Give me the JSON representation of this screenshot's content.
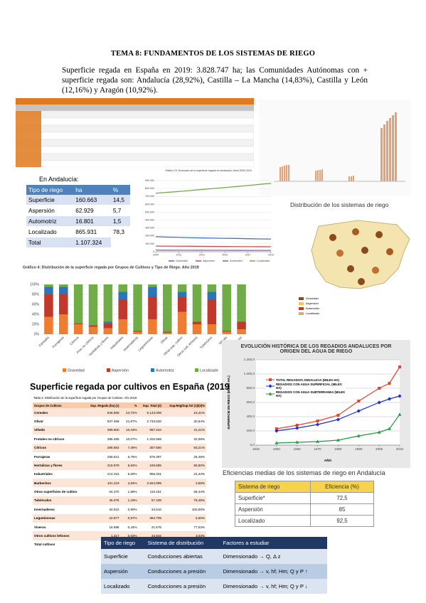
{
  "header": {
    "title": "TEMA 8: FUNDAMENTOS DE LOS SISTEMAS DE RIEGO"
  },
  "intro": "Superficie regada en España en 2019: 3.828.747 ha; las Comunidades Autónomas con + superficie regada son: Andalucía (28,92%), Castilla – La Mancha (14,83%), Castilla y León (12,16%) y Aragón (10,92%).",
  "andalucia": {
    "caption": "En Andalucía:",
    "columns": [
      "Tipo de riego",
      "ha",
      "%"
    ],
    "rows": [
      [
        "Superficie",
        "160.663",
        "14,5"
      ],
      [
        "Aspersión",
        "62.929",
        "5,7"
      ],
      [
        "Automotriz",
        "16.801",
        "1,5"
      ],
      [
        "Localizado",
        "865.931",
        "78,3"
      ],
      [
        "Total",
        "1.107.324"
      ]
    ]
  },
  "map": {
    "title": "Distribución de los sistemas de riego",
    "legend": [
      "Gravedad",
      "Aspersión",
      "Automotriz",
      "Localizado"
    ]
  },
  "chart_data": [
    {
      "type": "line",
      "title": "Gráfico 15: Evolución de la superficie regada en Andalucía. Años 2009-2019",
      "x": [
        2009,
        2010,
        2011,
        2012,
        2013,
        2014,
        2015,
        2016,
        2017,
        2018,
        2019
      ],
      "xlim": [
        2009,
        2019
      ],
      "xticks": [
        2009,
        2011,
        2013,
        2015,
        2017,
        2019
      ],
      "ylim": [
        0,
        900000
      ],
      "yticks": [
        0,
        {
          "value": 100000,
          "label": "100.000"
        },
        {
          "value": 200000,
          "label": "200.000"
        },
        {
          "value": 300000,
          "label": "300.000"
        },
        {
          "value": 400000,
          "label": "400.000"
        },
        {
          "value": 500000,
          "label": "500.000"
        },
        {
          "value": 600000,
          "label": "600.000"
        },
        {
          "value": 700000,
          "label": "700.000"
        },
        {
          "value": 800000,
          "label": "800.000"
        },
        {
          "value": 900000,
          "label": "900.000"
        }
      ],
      "grid": true,
      "series": [
        {
          "name": "Gravedad",
          "color": "#4472c4",
          "values": [
            190000,
            185000,
            182000,
            178000,
            175000,
            172000,
            170000,
            168000,
            165000,
            162000,
            160663
          ]
        },
        {
          "name": "Aspersión",
          "color": "#c0504d",
          "values": [
            72000,
            71000,
            70000,
            69000,
            68000,
            67000,
            66000,
            65000,
            64000,
            63500,
            62929
          ]
        },
        {
          "name": "Automotriz",
          "color": "#8064a2",
          "values": [
            20000,
            19500,
            19000,
            18800,
            18500,
            18000,
            17800,
            17500,
            17200,
            17000,
            16801
          ]
        },
        {
          "name": "Localizado",
          "color": "#70ad47",
          "values": [
            740000,
            752000,
            762000,
            775000,
            788000,
            800000,
            812000,
            825000,
            838000,
            852000,
            865931
          ]
        }
      ]
    },
    {
      "type": "stacked_bar",
      "title": "Gráfico 4: Distribución de la superficie regada por Grupos de Cultivos y Tipo de Riego. Año 2019",
      "categories": [
        "Cereales",
        "Forrajeras",
        "Cítricos",
        "Frut. no cítricos",
        "Hortalizas y flores",
        "Industriales",
        "Invernaderos",
        "Leguminosas",
        "Olivar",
        "Otras sup. cultivo",
        "Otros cult. leñosos",
        "Tubérculos",
        "Viñedo",
        "Viveros"
      ],
      "ylim": [
        0,
        100
      ],
      "yticks": [
        {
          "value": 0,
          "label": "0%"
        },
        {
          "value": 20,
          "label": "20%"
        },
        {
          "value": 40,
          "label": "40%"
        },
        {
          "value": 60,
          "label": "60%"
        },
        {
          "value": 80,
          "label": "80%"
        },
        {
          "value": 100,
          "label": "100%"
        }
      ],
      "grid": true,
      "legend": "bottom",
      "series": [
        {
          "name": "Gravedad",
          "color": "#ed7d31",
          "values": [
            35,
            40,
            20,
            15,
            12,
            30,
            5,
            30,
            3,
            45,
            20,
            20,
            5,
            10
          ]
        },
        {
          "name": "Aspersión",
          "color": "#c0392b",
          "values": [
            45,
            40,
            2,
            3,
            10,
            40,
            2,
            45,
            2,
            30,
            5,
            50,
            2,
            15
          ]
        },
        {
          "name": "Automotriz",
          "color": "#2e75b6",
          "values": [
            15,
            15,
            0,
            0,
            3,
            15,
            0,
            20,
            0,
            10,
            0,
            15,
            0,
            0
          ]
        },
        {
          "name": "Localizado",
          "color": "#70ad47",
          "values": [
            5,
            5,
            78,
            82,
            75,
            15,
            93,
            5,
            95,
            15,
            75,
            15,
            93,
            75
          ]
        }
      ]
    },
    {
      "type": "line",
      "title": "EVOLUCIÓN HISTÓRICA DE LOS REGADIOS ANDALUCES POR ORIGEN DEL AGUA DE RIEGO",
      "xlabel": "AÑO",
      "ylabel": "SUPERFICIE EN RIEGO (MILES HA.)",
      "x": [
        1950,
        1960,
        1970,
        1980,
        1990,
        2000,
        2005,
        2010
      ],
      "xlim": [
        1940,
        2010
      ],
      "xticks": [
        1940,
        1950,
        1960,
        1970,
        1980,
        1990,
        2000,
        2010
      ],
      "ylim": [
        0,
        1200
      ],
      "yticks": [
        {
          "value": 0,
          "label": "0,0"
        },
        {
          "value": 200,
          "label": "200,0"
        },
        {
          "value": 400,
          "label": "400,0"
        },
        {
          "value": 600,
          "label": "600,0"
        },
        {
          "value": 800,
          "label": "800,0"
        },
        {
          "value": 1000,
          "label": "1.000,0"
        },
        {
          "value": 1200,
          "label": "1.200,0"
        }
      ],
      "grid": true,
      "legend": "upper left",
      "series": [
        {
          "name": "TOTAL REGADIOS ANDALUCIA (MILES HA)",
          "color": "#e8412c",
          "marker": "square",
          "values": [
            230,
            280,
            340,
            420,
            620,
            800,
            870,
            1100
          ]
        },
        {
          "name": "REGADIOS CON AGUA SUPERFICIAL (MILES HA)",
          "color": "#1f2fd6",
          "marker": "diamond",
          "values": [
            200,
            240,
            290,
            360,
            480,
            600,
            650,
            690
          ]
        },
        {
          "name": "REGADIOS CON AGUA SUBTERRANEA (MILES HA)",
          "color": "#1e9e3a",
          "marker": "triangle",
          "values": [
            30,
            40,
            50,
            70,
            130,
            180,
            230,
            430
          ]
        }
      ]
    }
  ],
  "surface_table": {
    "title": "Superficie regada por cultivos en España (2019",
    "subtitle": "Tabla 3: Distribución de la superficie regada por Grupos de Cultivos. Año 2019",
    "columns": [
      "Grupos de Cultivos",
      "Sup. Regada (ha) (1)",
      "%",
      "Sup. Total (2)",
      "Sup.Reg/Sup.Tot (1)/(2)%"
    ],
    "rows": [
      [
        "Cereales",
        "946.568",
        "24,72%",
        "6.143.006",
        "15,41%"
      ],
      [
        "Olivar",
        "837.488",
        "21,87%",
        "2.733.620",
        "30,64%"
      ],
      [
        "Viñedo",
        "399.600",
        "10,43%",
        "967.234",
        "41,21%"
      ],
      [
        "Frutales no cítricos",
        "385.485",
        "10,07%",
        "1.202.569",
        "32,08%"
      ],
      [
        "Cítricos",
        "286.682",
        "7,49%",
        "307.560",
        "93,21%"
      ],
      [
        "Forrajeras",
        "258.621",
        "6,75%",
        "976.397",
        "26,49%"
      ],
      [
        "Hortalizas y flores",
        "215.979",
        "5,64%",
        "249.685",
        "86,50%"
      ],
      [
        "Industriales",
        "214.316",
        "5,60%",
        "955.331",
        "22,43%"
      ],
      [
        "Barbechos",
        "101.219",
        "2,64%",
        "2.824.099",
        "3,58%"
      ],
      [
        "Otras superficies de cultivo",
        "64.370",
        "1,68%",
        "110.151",
        "58,44%"
      ],
      [
        "Tubérculos",
        "45.075",
        "1,18%",
        "57.438",
        "78,48%"
      ],
      [
        "Invernaderos",
        "34.510",
        "0,90%",
        "34.510",
        "100,00%"
      ],
      [
        "Leguminosas",
        "22.877",
        "0,57%",
        "384.705",
        "6,00%"
      ],
      [
        "Viveros",
        "16.698",
        "0,44%",
        "21.676",
        "77,03%"
      ],
      [
        "Otros cultivos leñosos",
        "1.317",
        "0,03%",
        "43.502",
        "3,03%"
      ],
      [
        "Total cultivos",
        "3.828.747",
        "100,00%",
        "16.985.275",
        "22,54%"
      ]
    ]
  },
  "efficiency": {
    "title": "Eficiencias medias de los sistemas de riego en Andalucía",
    "columns": [
      "Sistema de riego",
      "Eficiencia (%)"
    ],
    "rows": [
      [
        "Superficie*",
        "72,5"
      ],
      [
        "Aspersión",
        "85"
      ],
      [
        "Localizado",
        "92,5"
      ]
    ]
  },
  "systems": {
    "columns": [
      "Tipo de riego",
      "Sistema de distribución",
      "Factores a estudiar"
    ],
    "rows": [
      [
        "Superficie",
        "Conducciones abiertas",
        "Dimensionado → Q, Δ z"
      ],
      [
        "Aspersión",
        "Conducciones a presión",
        "Dimensionado → v, hf; Hm; Q y P ↑"
      ],
      [
        "Localizado",
        "Conducciones a presión",
        "Dimensionado → v, hf; Hm; Q y P ↓"
      ]
    ]
  }
}
